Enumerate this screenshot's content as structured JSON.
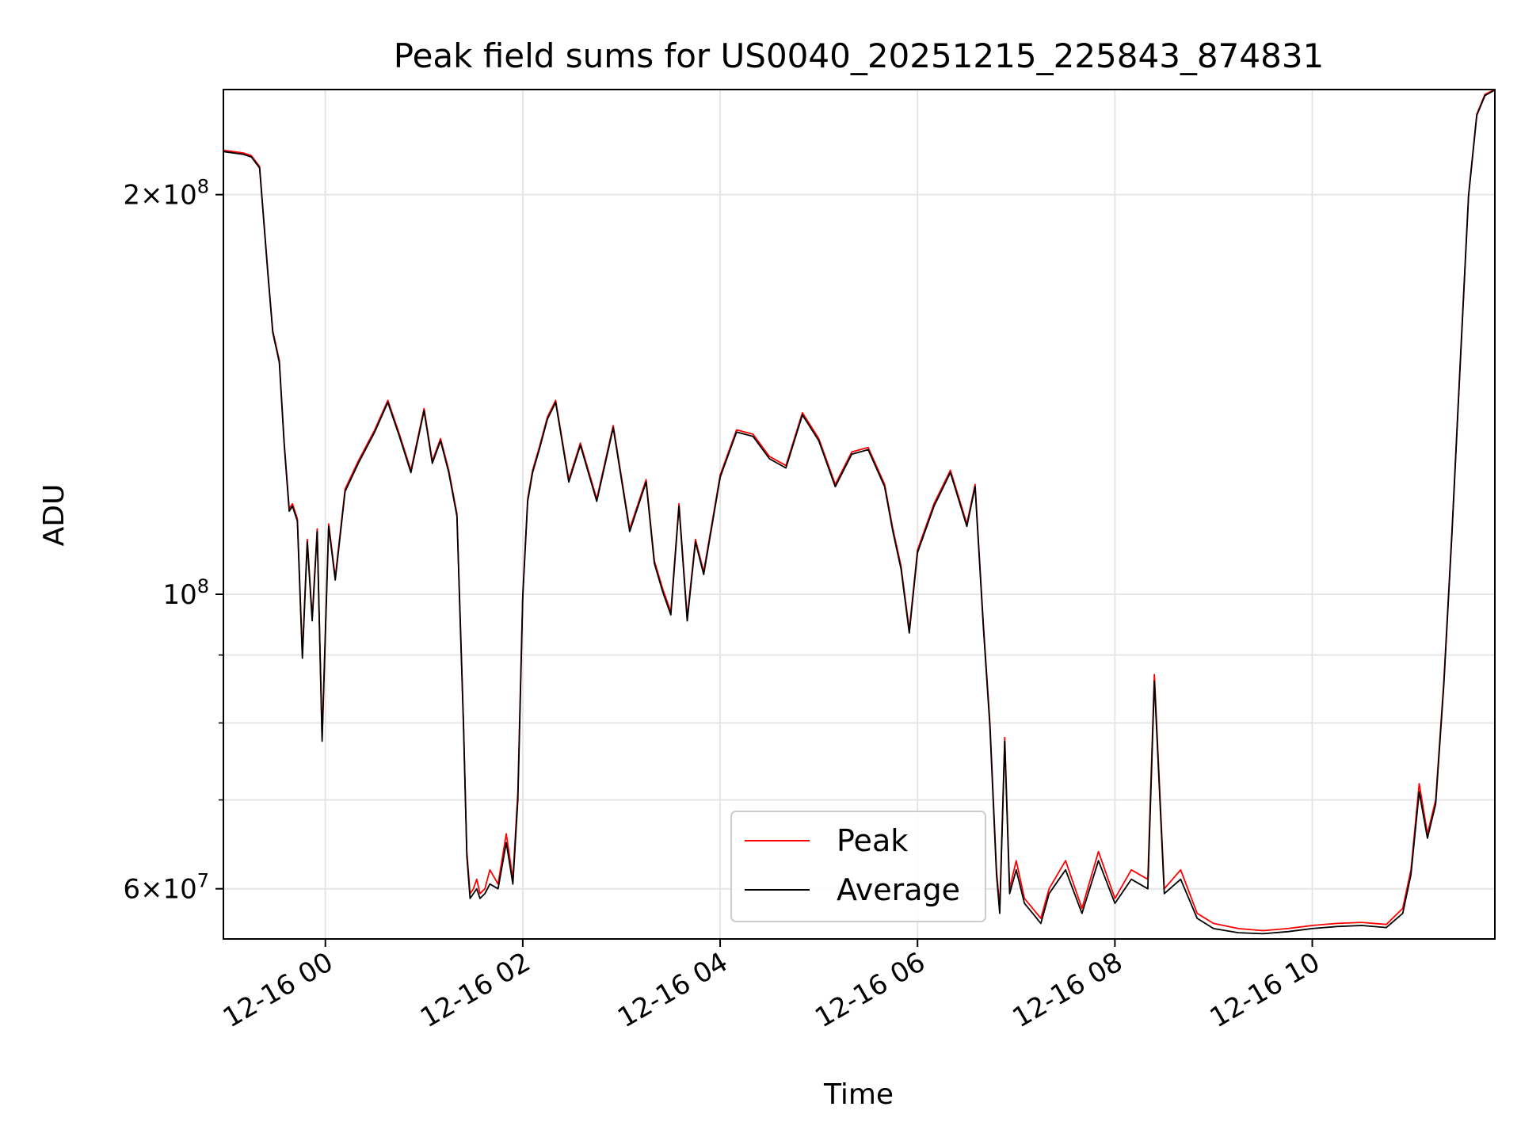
{
  "chart_data": {
    "type": "line",
    "title": "Peak field sums for US0040_20251215_225843_874831",
    "xlabel": "Time",
    "ylabel": "ADU",
    "y_scale": "log",
    "xlim": [
      "2025-12-15 22:58",
      "2025-12-16 11:51"
    ],
    "ylim": [
      55000000,
      240000000
    ],
    "grid": true,
    "legend_position": "lower-center",
    "x_ticks": [
      "12-16 00",
      "12-16 02",
      "12-16 04",
      "12-16 06",
      "12-16 08",
      "12-16 10"
    ],
    "y_ticks": [
      {
        "value": 200000000,
        "mantissa": "2",
        "exponent": "8"
      },
      {
        "value": 100000000,
        "mantissa": "",
        "exponent": "8"
      },
      {
        "value": 60000000,
        "mantissa": "6",
        "exponent": "7"
      }
    ],
    "series": [
      {
        "name": "Peak",
        "color": "#ff0000",
        "x": [
          "2025-12-15 22:58",
          "2025-12-15 23:10",
          "2025-12-15 23:15",
          "2025-12-15 23:20",
          "2025-12-15 23:25",
          "2025-12-15 23:28",
          "2025-12-15 23:32",
          "2025-12-15 23:35",
          "2025-12-15 23:38",
          "2025-12-15 23:40",
          "2025-12-15 23:43",
          "2025-12-15 23:46",
          "2025-12-15 23:49",
          "2025-12-15 23:52",
          "2025-12-15 23:55",
          "2025-12-15 23:58",
          "2025-12-16 00:02",
          "2025-12-16 00:06",
          "2025-12-16 00:12",
          "2025-12-16 00:20",
          "2025-12-16 00:30",
          "2025-12-16 00:38",
          "2025-12-16 00:45",
          "2025-12-16 00:52",
          "2025-12-16 01:00",
          "2025-12-16 01:05",
          "2025-12-16 01:10",
          "2025-12-16 01:15",
          "2025-12-16 01:20",
          "2025-12-16 01:24",
          "2025-12-16 01:26",
          "2025-12-16 01:28",
          "2025-12-16 01:30",
          "2025-12-16 01:32",
          "2025-12-16 01:34",
          "2025-12-16 01:37",
          "2025-12-16 01:40",
          "2025-12-16 01:45",
          "2025-12-16 01:50",
          "2025-12-16 01:54",
          "2025-12-16 01:57",
          "2025-12-16 02:00",
          "2025-12-16 02:03",
          "2025-12-16 02:06",
          "2025-12-16 02:10",
          "2025-12-16 02:15",
          "2025-12-16 02:20",
          "2025-12-16 02:28",
          "2025-12-16 02:35",
          "2025-12-16 02:45",
          "2025-12-16 02:55",
          "2025-12-16 03:05",
          "2025-12-16 03:15",
          "2025-12-16 03:20",
          "2025-12-16 03:25",
          "2025-12-16 03:30",
          "2025-12-16 03:35",
          "2025-12-16 03:40",
          "2025-12-16 03:45",
          "2025-12-16 03:50",
          "2025-12-16 04:00",
          "2025-12-16 04:10",
          "2025-12-16 04:20",
          "2025-12-16 04:30",
          "2025-12-16 04:40",
          "2025-12-16 04:50",
          "2025-12-16 05:00",
          "2025-12-16 05:10",
          "2025-12-16 05:20",
          "2025-12-16 05:30",
          "2025-12-16 05:40",
          "2025-12-16 05:45",
          "2025-12-16 05:50",
          "2025-12-16 05:55",
          "2025-12-16 06:00",
          "2025-12-16 06:10",
          "2025-12-16 06:20",
          "2025-12-16 06:30",
          "2025-12-16 06:35",
          "2025-12-16 06:40",
          "2025-12-16 06:44",
          "2025-12-16 06:48",
          "2025-12-16 06:50",
          "2025-12-16 06:53",
          "2025-12-16 06:56",
          "2025-12-16 07:00",
          "2025-12-16 07:05",
          "2025-12-16 07:10",
          "2025-12-16 07:15",
          "2025-12-16 07:20",
          "2025-12-16 07:30",
          "2025-12-16 07:40",
          "2025-12-16 07:50",
          "2025-12-16 08:00",
          "2025-12-16 08:10",
          "2025-12-16 08:20",
          "2025-12-16 08:24",
          "2025-12-16 08:30",
          "2025-12-16 08:40",
          "2025-12-16 08:50",
          "2025-12-16 09:00",
          "2025-12-16 09:15",
          "2025-12-16 09:30",
          "2025-12-16 09:45",
          "2025-12-16 10:00",
          "2025-12-16 10:15",
          "2025-12-16 10:30",
          "2025-12-16 10:45",
          "2025-12-16 10:55",
          "2025-12-16 11:00",
          "2025-12-16 11:05",
          "2025-12-16 11:10",
          "2025-12-16 11:15",
          "2025-12-16 11:20",
          "2025-12-16 11:25",
          "2025-12-16 11:30",
          "2025-12-16 11:35",
          "2025-12-16 11:40",
          "2025-12-16 11:45",
          "2025-12-16 11:51"
        ],
        "y": [
          216000000,
          215000000,
          214000000,
          210000000,
          175000000,
          158000000,
          150000000,
          130000000,
          116000000,
          117000000,
          114000000,
          90000000,
          110000000,
          96000000,
          112000000,
          78000000,
          113000000,
          103000000,
          120000000,
          126000000,
          133000000,
          140000000,
          132000000,
          124000000,
          138000000,
          126000000,
          131000000,
          124000000,
          115000000,
          80000000,
          64000000,
          59500000,
          60000000,
          61000000,
          59500000,
          60000000,
          62000000,
          60500000,
          66000000,
          61000000,
          71000000,
          100000000,
          118000000,
          124000000,
          129000000,
          136000000,
          140000000,
          122000000,
          130000000,
          118000000,
          134000000,
          112000000,
          122000000,
          106000000,
          101000000,
          97000000,
          117000000,
          96000000,
          110000000,
          104000000,
          123000000,
          133000000,
          132000000,
          127000000,
          125000000,
          137000000,
          131000000,
          121000000,
          128000000,
          129000000,
          121000000,
          112000000,
          105000000,
          94000000,
          108000000,
          117000000,
          124000000,
          113000000,
          121000000,
          95000000,
          80000000,
          62000000,
          58000000,
          78000000,
          60000000,
          63000000,
          59000000,
          58000000,
          57000000,
          60000000,
          63000000,
          58000000,
          64000000,
          59000000,
          62000000,
          61000000,
          87000000,
          60000000,
          62000000,
          57500000,
          56500000,
          56000000,
          55800000,
          56000000,
          56300000,
          56500000,
          56600000,
          56400000,
          58000000,
          62000000,
          72000000,
          66000000,
          70000000,
          86000000,
          112000000,
          150000000,
          200000000,
          230000000,
          238000000,
          240000000
        ]
      },
      {
        "name": "Average",
        "color": "#000000",
        "x": [
          "2025-12-15 22:58",
          "2025-12-15 23:10",
          "2025-12-15 23:15",
          "2025-12-15 23:20",
          "2025-12-15 23:25",
          "2025-12-15 23:28",
          "2025-12-15 23:32",
          "2025-12-15 23:35",
          "2025-12-15 23:38",
          "2025-12-15 23:40",
          "2025-12-15 23:43",
          "2025-12-15 23:46",
          "2025-12-15 23:49",
          "2025-12-15 23:52",
          "2025-12-15 23:55",
          "2025-12-15 23:58",
          "2025-12-16 00:02",
          "2025-12-16 00:06",
          "2025-12-16 00:12",
          "2025-12-16 00:20",
          "2025-12-16 00:30",
          "2025-12-16 00:38",
          "2025-12-16 00:45",
          "2025-12-16 00:52",
          "2025-12-16 01:00",
          "2025-12-16 01:05",
          "2025-12-16 01:10",
          "2025-12-16 01:15",
          "2025-12-16 01:20",
          "2025-12-16 01:24",
          "2025-12-16 01:26",
          "2025-12-16 01:28",
          "2025-12-16 01:30",
          "2025-12-16 01:32",
          "2025-12-16 01:34",
          "2025-12-16 01:37",
          "2025-12-16 01:40",
          "2025-12-16 01:45",
          "2025-12-16 01:50",
          "2025-12-16 01:54",
          "2025-12-16 01:57",
          "2025-12-16 02:00",
          "2025-12-16 02:03",
          "2025-12-16 02:06",
          "2025-12-16 02:10",
          "2025-12-16 02:15",
          "2025-12-16 02:20",
          "2025-12-16 02:28",
          "2025-12-16 02:35",
          "2025-12-16 02:45",
          "2025-12-16 02:55",
          "2025-12-16 03:05",
          "2025-12-16 03:15",
          "2025-12-16 03:20",
          "2025-12-16 03:25",
          "2025-12-16 03:30",
          "2025-12-16 03:35",
          "2025-12-16 03:40",
          "2025-12-16 03:45",
          "2025-12-16 03:50",
          "2025-12-16 04:00",
          "2025-12-16 04:10",
          "2025-12-16 04:20",
          "2025-12-16 04:30",
          "2025-12-16 04:40",
          "2025-12-16 04:50",
          "2025-12-16 05:00",
          "2025-12-16 05:10",
          "2025-12-16 05:20",
          "2025-12-16 05:30",
          "2025-12-16 05:40",
          "2025-12-16 05:45",
          "2025-12-16 05:50",
          "2025-12-16 05:55",
          "2025-12-16 06:00",
          "2025-12-16 06:10",
          "2025-12-16 06:20",
          "2025-12-16 06:30",
          "2025-12-16 06:35",
          "2025-12-16 06:40",
          "2025-12-16 06:44",
          "2025-12-16 06:48",
          "2025-12-16 06:50",
          "2025-12-16 06:53",
          "2025-12-16 06:56",
          "2025-12-16 07:00",
          "2025-12-16 07:05",
          "2025-12-16 07:10",
          "2025-12-16 07:15",
          "2025-12-16 07:20",
          "2025-12-16 07:30",
          "2025-12-16 07:40",
          "2025-12-16 07:50",
          "2025-12-16 08:00",
          "2025-12-16 08:10",
          "2025-12-16 08:20",
          "2025-12-16 08:24",
          "2025-12-16 08:30",
          "2025-12-16 08:40",
          "2025-12-16 08:50",
          "2025-12-16 09:00",
          "2025-12-16 09:15",
          "2025-12-16 09:30",
          "2025-12-16 09:45",
          "2025-12-16 10:00",
          "2025-12-16 10:15",
          "2025-12-16 10:30",
          "2025-12-16 10:45",
          "2025-12-16 10:55",
          "2025-12-16 11:00",
          "2025-12-16 11:05",
          "2025-12-16 11:10",
          "2025-12-16 11:15",
          "2025-12-16 11:20",
          "2025-12-16 11:25",
          "2025-12-16 11:30",
          "2025-12-16 11:35",
          "2025-12-16 11:40",
          "2025-12-16 11:45",
          "2025-12-16 11:51"
        ],
        "y": [
          215500000,
          214500000,
          213500000,
          209500000,
          174500000,
          157500000,
          149500000,
          129500000,
          115500000,
          116500000,
          113500000,
          89500000,
          109500000,
          95500000,
          111500000,
          77500000,
          112500000,
          102500000,
          119500000,
          125500000,
          132500000,
          139500000,
          131500000,
          123500000,
          137500000,
          125500000,
          130500000,
          123500000,
          114500000,
          79500000,
          63500000,
          59000000,
          59500000,
          60000000,
          59000000,
          59500000,
          60500000,
          60000000,
          65000000,
          60500000,
          70000000,
          99500000,
          117500000,
          123500000,
          128500000,
          135500000,
          139500000,
          121500000,
          129500000,
          117500000,
          133500000,
          111500000,
          121500000,
          105500000,
          100500000,
          96500000,
          116500000,
          95500000,
          109500000,
          103500000,
          122500000,
          132500000,
          131500000,
          126500000,
          124500000,
          136500000,
          130500000,
          120500000,
          127500000,
          128500000,
          120500000,
          111500000,
          104500000,
          93500000,
          107500000,
          116500000,
          123500000,
          112500000,
          120500000,
          94500000,
          79500000,
          61500000,
          57500000,
          77500000,
          59500000,
          62000000,
          58500000,
          57500000,
          56500000,
          59500000,
          62000000,
          57500000,
          63000000,
          58500000,
          61000000,
          60000000,
          86000000,
          59500000,
          61000000,
          57000000,
          56000000,
          55600000,
          55500000,
          55700000,
          56000000,
          56200000,
          56300000,
          56100000,
          57500000,
          61500000,
          71000000,
          65500000,
          69500000,
          85500000,
          111500000,
          149500000,
          199500000,
          229500000,
          237500000,
          239800000
        ]
      }
    ]
  }
}
